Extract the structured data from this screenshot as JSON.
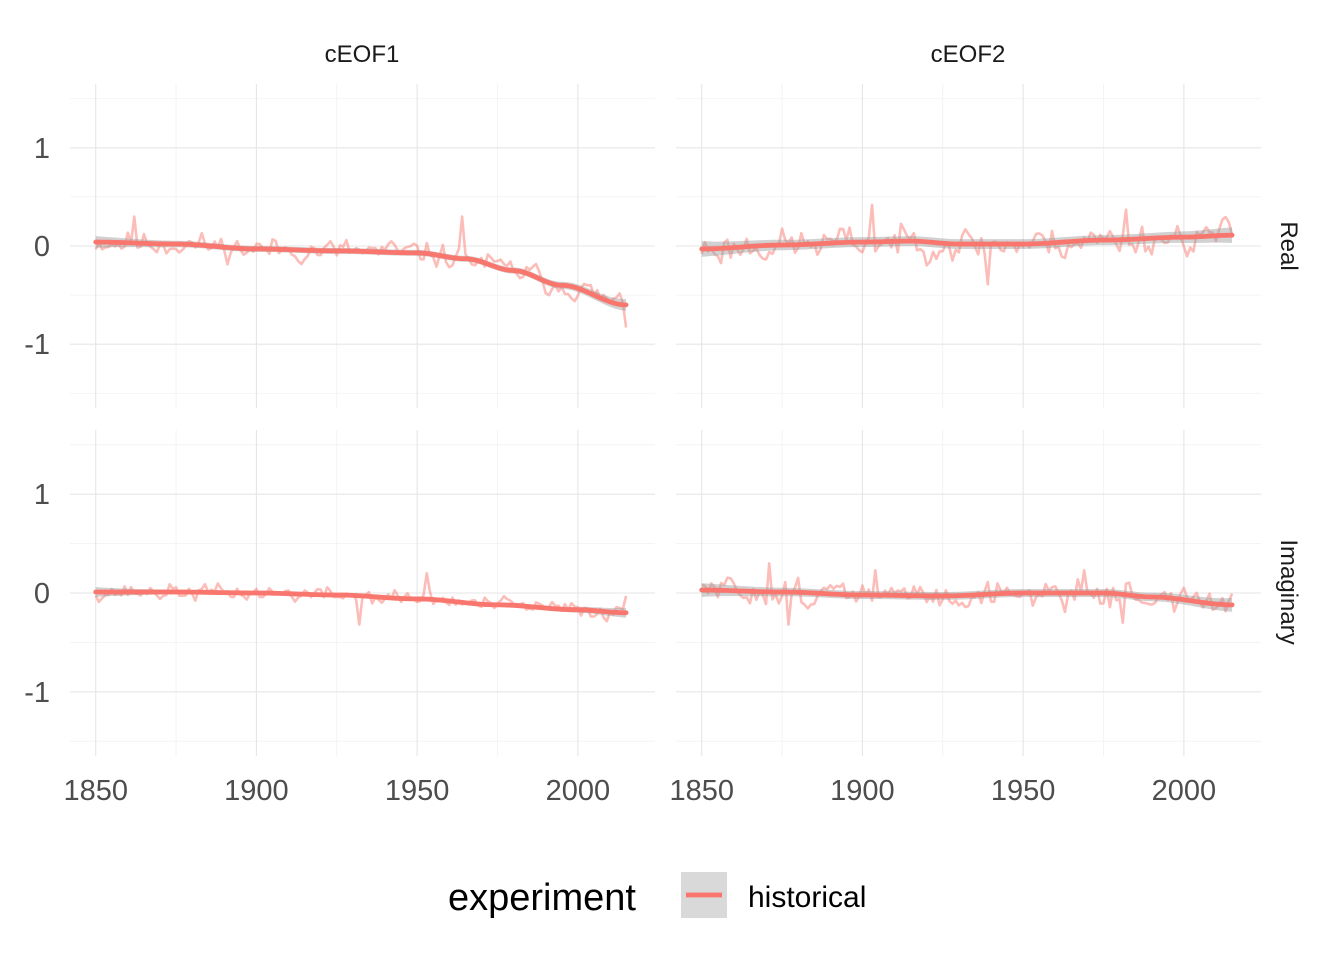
{
  "chart_data": {
    "type": "line",
    "layout": "facet-grid",
    "facet_columns": [
      "cEOF1",
      "cEOF2"
    ],
    "facet_rows": [
      "Real",
      "Imaginary"
    ],
    "x_ticks": [
      1850,
      1900,
      1950,
      2000
    ],
    "x_minor_ticks": [
      1875,
      1925,
      1975
    ],
    "y_ticks": [
      -1,
      0,
      1
    ],
    "y_tick_labels": [
      "-1",
      "0",
      "1"
    ],
    "y_minor_ticks": [
      -1.5,
      -0.5,
      0.5,
      1.5
    ],
    "xlim": [
      1842,
      2024
    ],
    "ylim": [
      -1.65,
      1.65
    ],
    "legend": {
      "title": "experiment",
      "position": "bottom",
      "entries": [
        {
          "label": "historical",
          "color": "#F8766D",
          "band_color": "#d9d9d9"
        }
      ]
    },
    "colors": {
      "series": "#F8766D",
      "ci_band": "#999999"
    },
    "years": {
      "start": 1850,
      "end": 2015
    },
    "panels": [
      {
        "col": "cEOF1",
        "row": "Real",
        "seed": 11,
        "noise": 0.09,
        "smooth": [
          [
            1850,
            0.04
          ],
          [
            1875,
            0.02
          ],
          [
            1900,
            -0.03
          ],
          [
            1925,
            -0.05
          ],
          [
            1950,
            -0.07
          ],
          [
            1965,
            -0.13
          ],
          [
            1980,
            -0.25
          ],
          [
            1995,
            -0.4
          ],
          [
            2015,
            -0.6
          ]
        ],
        "ci_width": [
          0.03,
          0.04
        ],
        "spikes": [
          [
            1862,
            0.3
          ],
          [
            1964,
            0.3
          ],
          [
            2015,
            -0.83
          ]
        ]
      },
      {
        "col": "cEOF2",
        "row": "Real",
        "seed": 23,
        "noise": 0.12,
        "smooth": [
          [
            1850,
            -0.03
          ],
          [
            1875,
            0.01
          ],
          [
            1900,
            0.04
          ],
          [
            1915,
            0.05
          ],
          [
            1930,
            0.02
          ],
          [
            1950,
            0.02
          ],
          [
            1975,
            0.06
          ],
          [
            2000,
            0.09
          ],
          [
            2015,
            0.11
          ]
        ],
        "ci_width": [
          0.05,
          0.06
        ],
        "spikes": [
          [
            1903,
            0.42
          ],
          [
            1939,
            -0.39
          ],
          [
            1982,
            0.37
          ]
        ]
      },
      {
        "col": "cEOF1",
        "row": "Imaginary",
        "seed": 37,
        "noise": 0.06,
        "smooth": [
          [
            1850,
            0.01
          ],
          [
            1875,
            0.01
          ],
          [
            1900,
            0.0
          ],
          [
            1925,
            -0.02
          ],
          [
            1950,
            -0.06
          ],
          [
            1975,
            -0.12
          ],
          [
            2000,
            -0.17
          ],
          [
            2015,
            -0.2
          ]
        ],
        "ci_width": [
          0.02,
          0.03
        ],
        "spikes": [
          [
            1953,
            0.2
          ],
          [
            1932,
            -0.32
          ],
          [
            2015,
            -0.03
          ]
        ]
      },
      {
        "col": "cEOF2",
        "row": "Imaginary",
        "seed": 51,
        "noise": 0.1,
        "smooth": [
          [
            1850,
            0.03
          ],
          [
            1875,
            0.01
          ],
          [
            1900,
            -0.02
          ],
          [
            1925,
            -0.03
          ],
          [
            1950,
            0.0
          ],
          [
            1975,
            0.0
          ],
          [
            1990,
            -0.04
          ],
          [
            2015,
            -0.12
          ]
        ],
        "ci_width": [
          0.04,
          0.05
        ],
        "spikes": [
          [
            1871,
            0.3
          ],
          [
            1877,
            -0.32
          ],
          [
            1904,
            0.23
          ],
          [
            1969,
            0.23
          ],
          [
            1981,
            -0.3
          ]
        ]
      }
    ]
  }
}
